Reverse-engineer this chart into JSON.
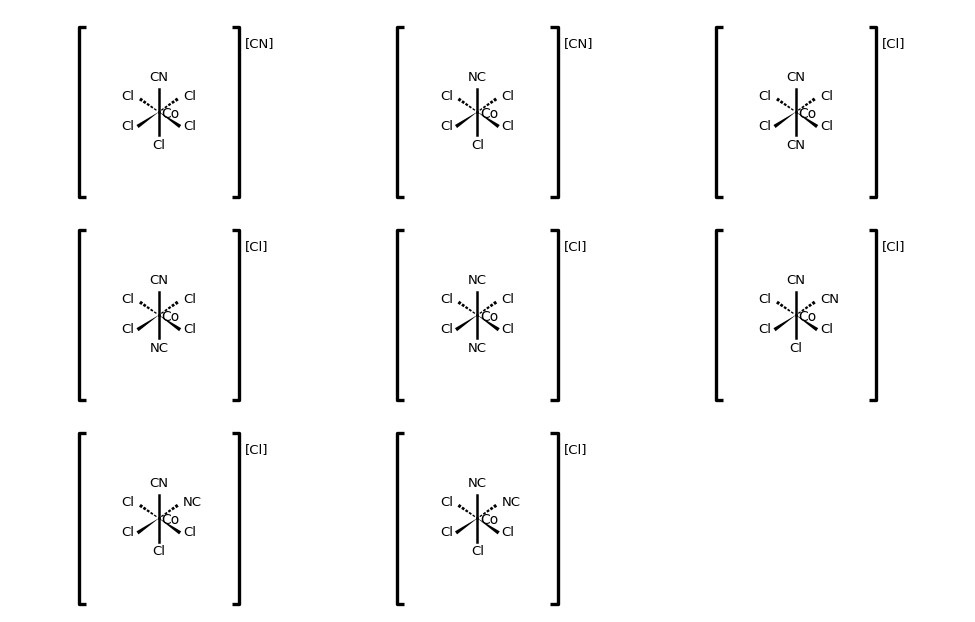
{
  "background": "#ffffff",
  "structures": [
    {
      "counter_ion": "[CN]",
      "top": "CN",
      "bottom": "Cl",
      "dash_left": "Cl",
      "dash_right": "Cl",
      "wedge_left": "Cl",
      "wedge_right": "Cl"
    },
    {
      "counter_ion": "[CN]",
      "top": "NC",
      "bottom": "Cl",
      "dash_left": "Cl",
      "dash_right": "Cl",
      "wedge_left": "Cl",
      "wedge_right": "Cl"
    },
    {
      "counter_ion": "[Cl]",
      "top": "CN",
      "bottom": "CN",
      "dash_left": "Cl",
      "dash_right": "Cl",
      "wedge_left": "Cl",
      "wedge_right": "Cl"
    },
    {
      "counter_ion": "[Cl]",
      "top": "CN",
      "bottom": "NC",
      "dash_left": "Cl",
      "dash_right": "Cl",
      "wedge_left": "Cl",
      "wedge_right": "Cl"
    },
    {
      "counter_ion": "[Cl]",
      "top": "NC",
      "bottom": "NC",
      "dash_left": "Cl",
      "dash_right": "Cl",
      "wedge_left": "Cl",
      "wedge_right": "Cl"
    },
    {
      "counter_ion": "[Cl]",
      "top": "CN",
      "bottom": "Cl",
      "dash_left": "Cl",
      "dash_right": "CN",
      "wedge_left": "Cl",
      "wedge_right": "Cl"
    },
    {
      "counter_ion": "[Cl]",
      "top": "CN",
      "bottom": "Cl",
      "dash_left": "Cl",
      "dash_right": "NC",
      "wedge_left": "Cl",
      "wedge_right": "Cl"
    },
    {
      "counter_ion": "[Cl]",
      "top": "NC",
      "bottom": "Cl",
      "dash_left": "Cl",
      "dash_right": "NC",
      "wedge_left": "Cl",
      "wedge_right": "Cl"
    }
  ]
}
